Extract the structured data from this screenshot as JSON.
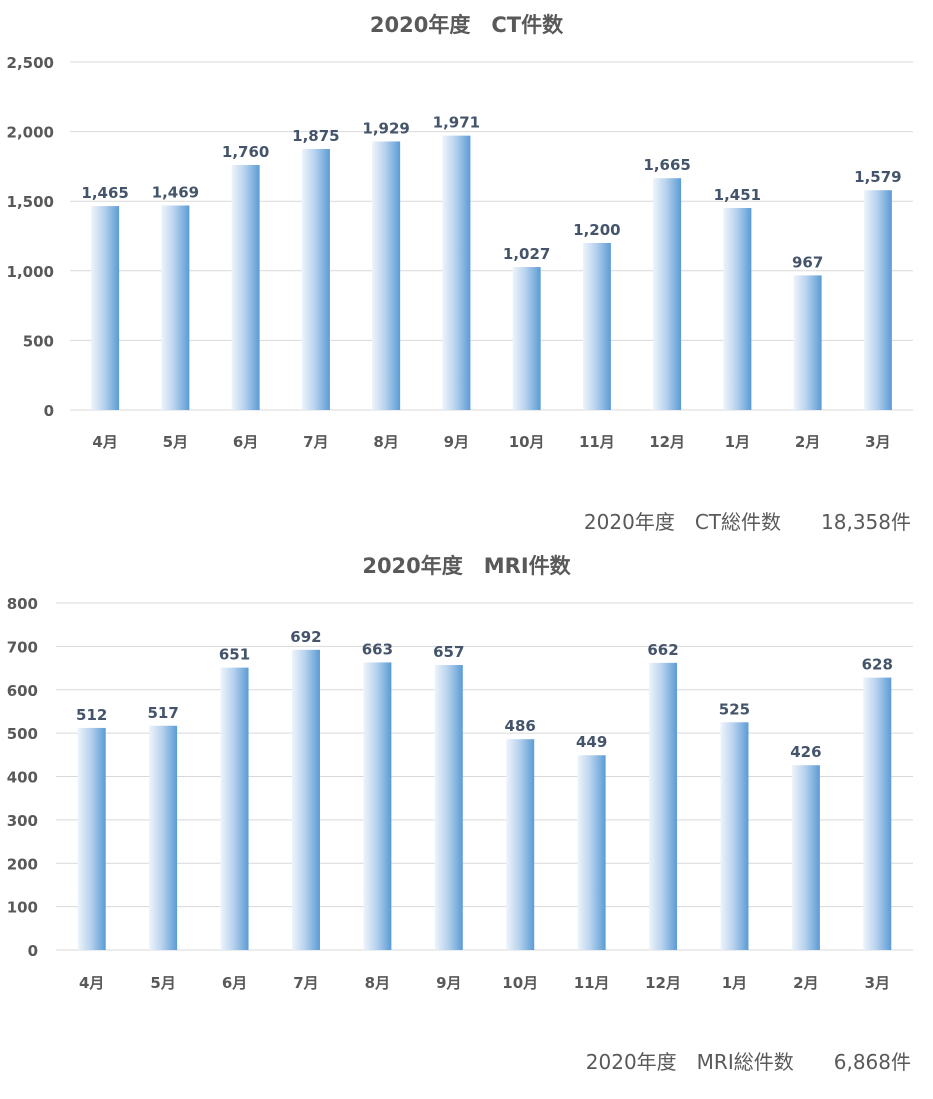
{
  "chart_data": [
    {
      "id": "ct",
      "type": "bar",
      "title": "2020年度　CT件数",
      "categories": [
        "4月",
        "5月",
        "6月",
        "7月",
        "8月",
        "9月",
        "10月",
        "11月",
        "12月",
        "1月",
        "2月",
        "3月"
      ],
      "values": [
        1465,
        1469,
        1760,
        1875,
        1929,
        1971,
        1027,
        1200,
        1665,
        1451,
        967,
        1579
      ],
      "value_labels": [
        "1,465",
        "1,469",
        "1,760",
        "1,875",
        "1,929",
        "1,971",
        "1,027",
        "1,200",
        "1,665",
        "1,451",
        "967",
        "1,579"
      ],
      "y_ticks": [
        0,
        500,
        1000,
        1500,
        2000,
        2500
      ],
      "y_tick_labels": [
        "0",
        "500",
        "1,000",
        "1,500",
        "2,000",
        "2,500"
      ],
      "ylim": [
        0,
        2500
      ],
      "grid": true,
      "legend": "none",
      "xlabel": "",
      "ylabel": "",
      "total": {
        "label": "2020年度　CT総件数",
        "value": "18,358件"
      }
    },
    {
      "id": "mri",
      "type": "bar",
      "title": "2020年度　MRI件数",
      "categories": [
        "4月",
        "5月",
        "6月",
        "7月",
        "8月",
        "9月",
        "10月",
        "11月",
        "12月",
        "1月",
        "2月",
        "3月"
      ],
      "values": [
        512,
        517,
        651,
        692,
        663,
        657,
        486,
        449,
        662,
        525,
        426,
        628
      ],
      "value_labels": [
        "512",
        "517",
        "651",
        "692",
        "663",
        "657",
        "486",
        "449",
        "662",
        "525",
        "426",
        "628"
      ],
      "y_ticks": [
        0,
        100,
        200,
        300,
        400,
        500,
        600,
        700,
        800
      ],
      "y_tick_labels": [
        "0",
        "100",
        "200",
        "300",
        "400",
        "500",
        "600",
        "700",
        "800"
      ],
      "ylim": [
        0,
        800
      ],
      "grid": true,
      "legend": "none",
      "xlabel": "",
      "ylabel": "",
      "total": {
        "label": "2020年度　MRI総件数",
        "value": "6,868件"
      }
    }
  ],
  "colors": {
    "bar_dark": "#5b9bd5",
    "bar_light": "#eef4fb",
    "gridline": "#d9d9d9",
    "axis_text": "#595959",
    "value_label": "#44546a",
    "title_text": "#595959"
  }
}
